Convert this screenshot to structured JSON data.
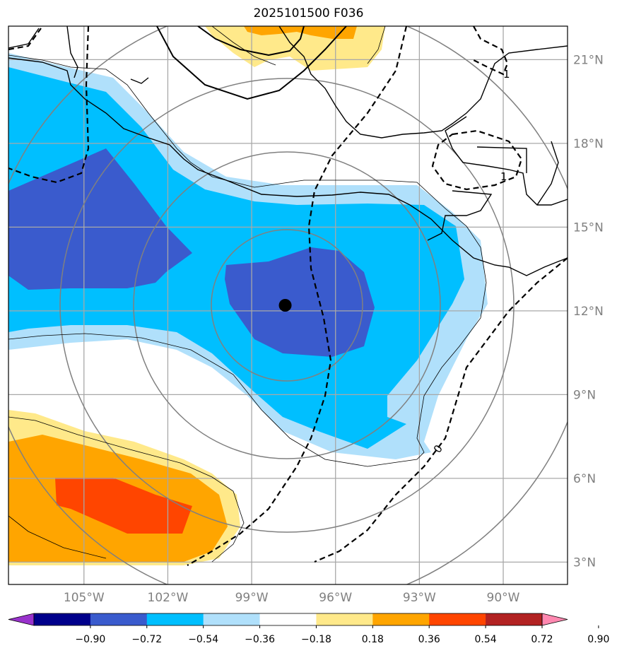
{
  "title": "2025101500 F036",
  "map": {
    "lon_range": [
      -107.7,
      -87.7
    ],
    "lat_range": [
      2.2,
      22.2
    ],
    "lat_labels": [
      "21°N",
      "18°N",
      "15°N",
      "12°N",
      "9°N",
      "6°N",
      "3°N"
    ],
    "lat_values": [
      21,
      18,
      15,
      12,
      9,
      6,
      3
    ],
    "lon_labels": [
      "105°W",
      "102°W",
      "99°W",
      "96°W",
      "93°W",
      "90°W"
    ],
    "lon_values": [
      -105,
      -102,
      -99,
      -96,
      -93,
      -90
    ],
    "center_marker": {
      "lon": -97.8,
      "lat": 12.2
    },
    "contour_labels": [
      "1",
      "0",
      "1"
    ]
  },
  "colorbar": {
    "ticks": [
      "−0.90",
      "−0.72",
      "−0.54",
      "−0.36",
      "−0.18",
      "0.18",
      "0.36",
      "0.54",
      "0.72",
      "0.90"
    ],
    "colors": [
      "#9932cc",
      "#00008b",
      "#3a5bcd",
      "#00bfff",
      "#b0e0fb",
      "#ffffff",
      "#ffe98a",
      "#ffa500",
      "#ff4500",
      "#b22222",
      "#ff88b0"
    ]
  }
}
